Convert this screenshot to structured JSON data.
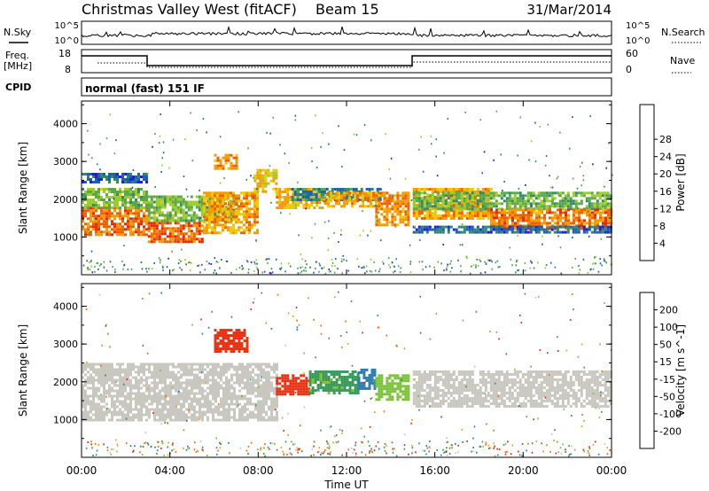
{
  "header": {
    "station": "Christmas Valley West (fitACF)",
    "beam": "Beam 15",
    "date": "31/Mar/2014"
  },
  "strip": {
    "nsky_label": "N.Sky",
    "nsearch_label": "N.Search",
    "noise_ticks_left": [
      "10^5",
      "10^0"
    ],
    "noise_ticks_right": [
      "10^5",
      "10^0"
    ],
    "freq_label_1": "Freq.",
    "freq_label_2": "[MHz]",
    "freq_ticks": [
      "18",
      "8"
    ],
    "nave_label": "Nave",
    "nave_ticks": [
      "60",
      "0"
    ],
    "cpid_label": "CPID",
    "cpid_text": "normal (fast) 151 IF"
  },
  "chart_data": [
    {
      "type": "heatmap",
      "panel": "power",
      "ylabel": "Slant Range [km]",
      "y_ticks": [
        "1000",
        "2000",
        "3000",
        "4000"
      ],
      "ylim": [
        0,
        4600
      ],
      "x_ticks": [
        "00:00",
        "04:00",
        "08:00",
        "12:00",
        "16:00",
        "20:00",
        "00:00"
      ],
      "xlim_hours": [
        0,
        24
      ],
      "colorbar": {
        "label": "Power [dB]",
        "ticks": [
          "4",
          "8",
          "12",
          "16",
          "20",
          "24",
          "28"
        ],
        "colors": [
          "#1f1fe0",
          "#1f5fb0",
          "#2e8a6e",
          "#5aa84a",
          "#9ccc2a",
          "#f0c800",
          "#f59a00",
          "#f06000",
          "#e82800"
        ]
      },
      "bands": [
        {
          "t0": 0.0,
          "t1": 2.9,
          "r0": 1050,
          "r1": 1800,
          "level": 26
        },
        {
          "t0": 0.0,
          "t1": 2.9,
          "r0": 1800,
          "r1": 2300,
          "level": 14
        },
        {
          "t0": 0.0,
          "t1": 2.9,
          "r0": 2450,
          "r1": 2700,
          "level": 6
        },
        {
          "t0": 3.0,
          "t1": 5.5,
          "r0": 900,
          "r1": 1400,
          "level": 27
        },
        {
          "t0": 3.0,
          "t1": 7.0,
          "r0": 1400,
          "r1": 2100,
          "level": 14
        },
        {
          "t0": 5.5,
          "t1": 8.0,
          "r0": 1100,
          "r1": 2200,
          "level": 22
        },
        {
          "t0": 6.0,
          "t1": 7.0,
          "r0": 2800,
          "r1": 3200,
          "level": 24
        },
        {
          "t0": 7.8,
          "t1": 8.8,
          "r0": 2200,
          "r1": 2800,
          "level": 20
        },
        {
          "t0": 8.8,
          "t1": 11.0,
          "r0": 1800,
          "r1": 2300,
          "level": 21
        },
        {
          "t0": 9.5,
          "t1": 13.5,
          "r0": 2000,
          "r1": 2300,
          "level": 8
        },
        {
          "t0": 11.0,
          "t1": 13.3,
          "r0": 1800,
          "r1": 2200,
          "level": 22
        },
        {
          "t0": 13.3,
          "t1": 14.8,
          "r0": 1300,
          "r1": 2200,
          "level": 24
        },
        {
          "t0": 15.0,
          "t1": 18.5,
          "r0": 1500,
          "r1": 2300,
          "level": 23
        },
        {
          "t0": 15.0,
          "t1": 24.0,
          "r0": 1750,
          "r1": 2200,
          "level": 13
        },
        {
          "t0": 18.5,
          "t1": 24.0,
          "r0": 1250,
          "r1": 1750,
          "level": 25
        },
        {
          "t0": 15.0,
          "t1": 24.0,
          "r0": 1100,
          "r1": 1300,
          "level": 6
        }
      ]
    },
    {
      "type": "heatmap",
      "panel": "velocity",
      "ylabel": "Slant Range [km]",
      "y_ticks": [
        "1000",
        "2000",
        "3000",
        "4000"
      ],
      "ylim": [
        0,
        4600
      ],
      "x_ticks": [
        "00:00",
        "04:00",
        "08:00",
        "12:00",
        "16:00",
        "20:00",
        "00:00"
      ],
      "xlim_hours": [
        0,
        24
      ],
      "xlabel": "Time UT",
      "colorbar": {
        "label": "Velocity [m s^-1]",
        "ticks": [
          "200",
          "100",
          "50",
          "15",
          "-15",
          "-50",
          "-100",
          "-200"
        ],
        "colors": [
          "#1a3fcc",
          "#2a7fb0",
          "#3a9a5a",
          "#7cc23a",
          "#c8c8c0",
          "#f0a020",
          "#f07010",
          "#e83010",
          "#e00000"
        ]
      },
      "bands": [
        {
          "t0": 0.0,
          "t1": 8.8,
          "r0": 1000,
          "r1": 2500,
          "level": 0
        },
        {
          "t0": 6.0,
          "t1": 7.5,
          "r0": 2800,
          "r1": 3400,
          "level": -180
        },
        {
          "t0": 8.8,
          "t1": 10.3,
          "r0": 1700,
          "r1": 2200,
          "level": -160
        },
        {
          "t0": 10.3,
          "t1": 12.5,
          "r0": 1700,
          "r1": 2300,
          "level": 60
        },
        {
          "t0": 12.5,
          "t1": 13.3,
          "r0": 1800,
          "r1": 2350,
          "level": 180
        },
        {
          "t0": 13.3,
          "t1": 14.8,
          "r0": 1500,
          "r1": 2200,
          "level": 30
        },
        {
          "t0": 15.0,
          "t1": 24.0,
          "r0": 1350,
          "r1": 2300,
          "level": 0
        }
      ]
    }
  ]
}
